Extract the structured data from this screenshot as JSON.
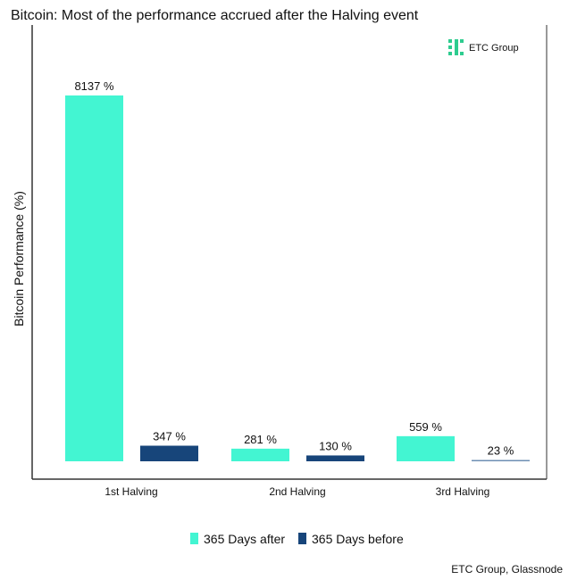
{
  "chart_data": {
    "type": "bar",
    "title": "Bitcoin: Most of the performance accrued after the Halving event",
    "ylabel": "Bitcoin Performance (%)",
    "xlabel": "",
    "categories": [
      "1st Halving",
      "2nd Halving",
      "3rd Halving"
    ],
    "series": [
      {
        "name": "365 Days after",
        "values": [
          8137,
          281,
          559
        ],
        "color": "#43F5D2"
      },
      {
        "name": "365 Days before",
        "values": [
          347,
          130,
          23
        ],
        "color": "#17457A"
      }
    ],
    "data_labels": [
      [
        "8137 %",
        "281 %",
        "559 %"
      ],
      [
        "347 %",
        "130 %",
        "23 %"
      ]
    ],
    "ylim": [
      0,
      9000
    ],
    "grid": false,
    "legend_position": "bottom",
    "source": "ETC Group, Glassnode",
    "logo": "ETC Group"
  }
}
